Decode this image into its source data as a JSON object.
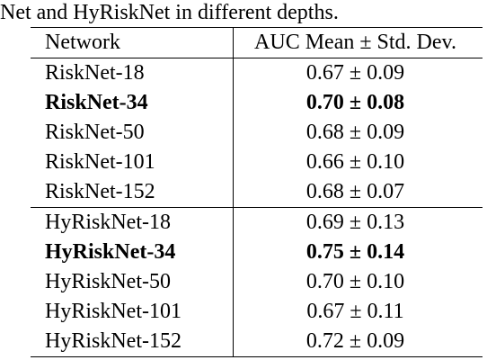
{
  "caption": "Net and HyRiskNet in different depths.",
  "table": {
    "headers": [
      "Network",
      "AUC Mean ± Std. Dev."
    ],
    "groups": [
      [
        {
          "network": "RiskNet-18",
          "auc": "0.67 ± 0.09",
          "bold": false
        },
        {
          "network": "RiskNet-34",
          "auc": "0.70 ± 0.08",
          "bold": true
        },
        {
          "network": "RiskNet-50",
          "auc": "0.68 ± 0.09",
          "bold": false
        },
        {
          "network": "RiskNet-101",
          "auc": "0.66 ± 0.10",
          "bold": false
        },
        {
          "network": "RiskNet-152",
          "auc": "0.68 ± 0.07",
          "bold": false
        }
      ],
      [
        {
          "network": "HyRiskNet-18",
          "auc": "0.69 ± 0.13",
          "bold": false
        },
        {
          "network": "HyRiskNet-34",
          "auc": "0.75 ± 0.14",
          "bold": true
        },
        {
          "network": "HyRiskNet-50",
          "auc": "0.70 ± 0.10",
          "bold": false
        },
        {
          "network": "HyRiskNet-101",
          "auc": "0.67 ± 0.11",
          "bold": false
        },
        {
          "network": "HyRiskNet-152",
          "auc": "0.72 ± 0.09",
          "bold": false
        }
      ]
    ]
  }
}
